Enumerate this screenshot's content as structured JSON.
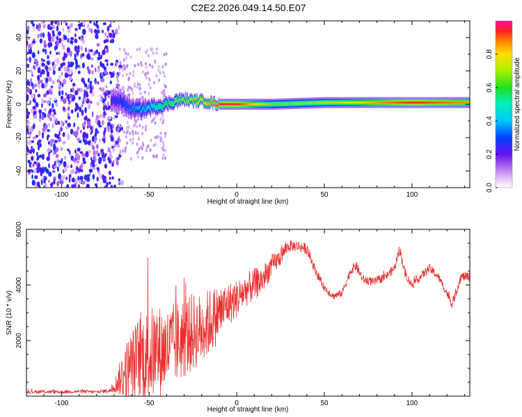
{
  "title": "C2E2.2026.049.14.50.E07",
  "chart_data": [
    {
      "type": "heatmap",
      "name": "spectrogram",
      "xlabel": "Height of straight line (km)",
      "ylabel": "Frequency (Hz)",
      "xlim": [
        -120,
        133
      ],
      "ylim": [
        -50,
        50
      ],
      "xticks": [
        -100,
        -50,
        0,
        50,
        100
      ],
      "yticks": [
        -40,
        -20,
        0,
        20,
        40
      ],
      "noise_region_x": [
        -120,
        -70
      ],
      "ridge": {
        "x": [
          -72,
          -65,
          -60,
          -55,
          -50,
          -45,
          -40,
          -35,
          -30,
          -25,
          -20,
          -15,
          -10,
          0,
          20,
          50,
          80,
          100,
          133
        ],
        "freq_hz": [
          3,
          1,
          -3,
          -3,
          -2,
          -1,
          0,
          2,
          3,
          2,
          2,
          1,
          0,
          0,
          0,
          1,
          1,
          1,
          1
        ],
        "width_hz": [
          6,
          6,
          5,
          5,
          4,
          4,
          3.5,
          3.5,
          3,
          3,
          3,
          3,
          3,
          3,
          3,
          3,
          3,
          3,
          3
        ],
        "amplitude": [
          0.25,
          0.3,
          0.35,
          0.4,
          0.45,
          0.55,
          0.6,
          0.65,
          0.7,
          0.75,
          0.8,
          0.85,
          0.95,
          0.95,
          0.65,
          0.7,
          0.85,
          0.95,
          0.85
        ]
      },
      "colorbar": {
        "label": "Normalized spectral amplitude",
        "range": [
          0,
          1
        ],
        "ticks": [
          "0.0",
          "0.2",
          "0.4",
          "0.6",
          "0.8"
        ]
      }
    },
    {
      "type": "line",
      "name": "snr",
      "xlabel": "Height of straight line (km)",
      "ylabel": "SNR (10 * v/v)",
      "xlim": [
        -120,
        133
      ],
      "ylim": [
        0,
        6000
      ],
      "xticks": [
        -100,
        -50,
        0,
        50,
        100
      ],
      "yticks": [
        2000,
        4000,
        6000
      ],
      "color": "#e8302f",
      "series": [
        {
          "name": "SNR",
          "x": [
            -120,
            -110,
            -100,
            -90,
            -80,
            -72,
            -68,
            -65,
            -60,
            -55,
            -50,
            -45,
            -40,
            -35,
            -30,
            -25,
            -20,
            -15,
            -10,
            -5,
            0,
            5,
            10,
            15,
            20,
            25,
            28,
            30,
            35,
            40,
            45,
            50,
            55,
            60,
            65,
            68,
            72,
            78,
            85,
            90,
            93,
            96,
            100,
            105,
            110,
            115,
            120,
            123,
            128,
            133
          ],
          "mean": [
            150,
            160,
            150,
            170,
            150,
            200,
            500,
            800,
            1100,
            1400,
            1500,
            1600,
            1700,
            1900,
            2100,
            2300,
            2400,
            2700,
            3000,
            3300,
            3500,
            3800,
            4000,
            4200,
            4700,
            5000,
            5300,
            5400,
            5400,
            5300,
            4500,
            3900,
            3600,
            3700,
            4500,
            4700,
            4200,
            4100,
            4300,
            4600,
            5300,
            4400,
            4000,
            4300,
            4600,
            4300,
            3700,
            3300,
            4300,
            4300
          ],
          "noise": [
            60,
            60,
            60,
            60,
            60,
            80,
            400,
            900,
            1300,
            1600,
            1700,
            1700,
            1500,
            1500,
            1500,
            1400,
            1300,
            1200,
            1000,
            800,
            700,
            600,
            600,
            500,
            400,
            300,
            250,
            200,
            200,
            200,
            160,
            130,
            130,
            130,
            160,
            180,
            160,
            150,
            150,
            160,
            200,
            160,
            150,
            150,
            160,
            150,
            140,
            150,
            160,
            160
          ]
        }
      ]
    }
  ]
}
